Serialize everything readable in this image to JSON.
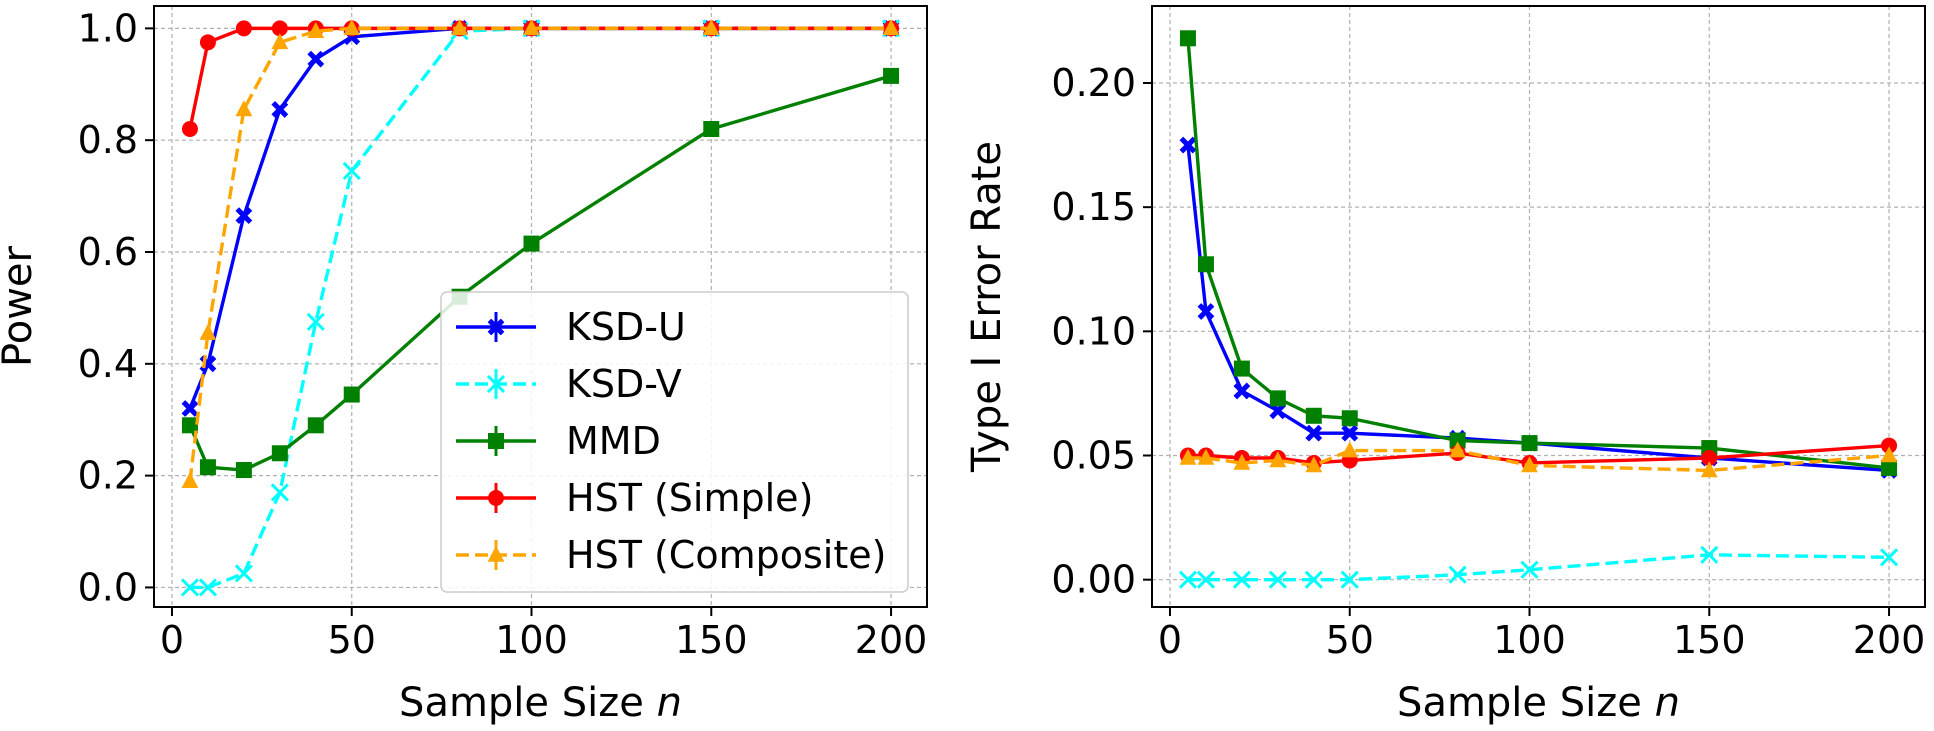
{
  "chart_data": [
    {
      "type": "line",
      "xlabel_main": "Sample Size ",
      "xlabel_var": "n",
      "ylabel": "Power",
      "xlim": [
        -5,
        210
      ],
      "ylim": [
        -0.035,
        1.04
      ],
      "xticks": [
        0,
        50,
        100,
        150,
        200
      ],
      "yticks": [
        0.0,
        0.2,
        0.4,
        0.6,
        0.8,
        1.0
      ],
      "ytick_decimals": 1,
      "grid": true,
      "legend": {
        "position": "center-right"
      },
      "x": [
        5,
        10,
        20,
        30,
        40,
        50,
        80,
        100,
        150,
        200
      ],
      "series": [
        {
          "name": "KSD-U",
          "color": "#0000ff",
          "linestyle": "solid",
          "marker": "X",
          "values": [
            0.32,
            0.4,
            0.665,
            0.855,
            0.945,
            0.985,
            1.0,
            1.0,
            1.0,
            1.0
          ]
        },
        {
          "name": "KSD-V",
          "color": "#00ffff",
          "linestyle": "dashed",
          "marker": "x",
          "values": [
            0.0,
            0.0,
            0.025,
            0.17,
            0.475,
            0.745,
            0.995,
            1.0,
            1.0,
            1.0
          ]
        },
        {
          "name": "MMD",
          "color": "#008000",
          "linestyle": "solid",
          "marker": "s",
          "values": [
            0.29,
            0.215,
            0.21,
            0.24,
            0.29,
            0.345,
            0.52,
            0.615,
            0.82,
            0.915
          ]
        },
        {
          "name": "HST (Simple)",
          "color": "#ff0000",
          "linestyle": "solid",
          "marker": "o",
          "values": [
            0.82,
            0.975,
            1.0,
            1.0,
            1.0,
            1.0,
            1.0,
            1.0,
            1.0,
            1.0
          ]
        },
        {
          "name": "HST (Composite)",
          "color": "#ffa500",
          "linestyle": "dashed",
          "marker": "^",
          "values": [
            0.19,
            0.455,
            0.855,
            0.975,
            0.995,
            1.0,
            1.0,
            1.0,
            1.0,
            1.0
          ]
        }
      ]
    },
    {
      "type": "line",
      "xlabel_main": "Sample Size ",
      "xlabel_var": "n",
      "ylabel": "Type I Error Rate",
      "xlim": [
        -5,
        210
      ],
      "ylim": [
        -0.011,
        0.231
      ],
      "xticks": [
        0,
        50,
        100,
        150,
        200
      ],
      "yticks": [
        0.0,
        0.05,
        0.1,
        0.15,
        0.2
      ],
      "ytick_decimals": 2,
      "grid": true,
      "x": [
        5,
        10,
        20,
        30,
        40,
        50,
        80,
        100,
        150,
        200
      ],
      "series": [
        {
          "color": "#0000ff",
          "linestyle": "solid",
          "marker": "X",
          "values": [
            0.175,
            0.108,
            0.076,
            0.068,
            0.059,
            0.059,
            0.057,
            0.055,
            0.049,
            0.044
          ]
        },
        {
          "color": "#00ffff",
          "linestyle": "dashed",
          "marker": "x",
          "values": [
            0.0,
            0.0,
            0.0,
            0.0,
            0.0,
            0.0,
            0.002,
            0.004,
            0.01,
            0.009
          ]
        },
        {
          "color": "#008000",
          "linestyle": "solid",
          "marker": "s",
          "values": [
            0.218,
            0.127,
            0.085,
            0.073,
            0.066,
            0.065,
            0.056,
            0.055,
            0.053,
            0.045
          ]
        },
        {
          "color": "#ff0000",
          "linestyle": "solid",
          "marker": "o",
          "values": [
            0.05,
            0.05,
            0.049,
            0.049,
            0.047,
            0.048,
            0.051,
            0.047,
            0.049,
            0.054
          ]
        },
        {
          "color": "#ffa500",
          "linestyle": "dashed",
          "marker": "^",
          "values": [
            0.049,
            0.049,
            0.047,
            0.048,
            0.046,
            0.052,
            0.052,
            0.046,
            0.044,
            0.05
          ]
        }
      ]
    }
  ]
}
